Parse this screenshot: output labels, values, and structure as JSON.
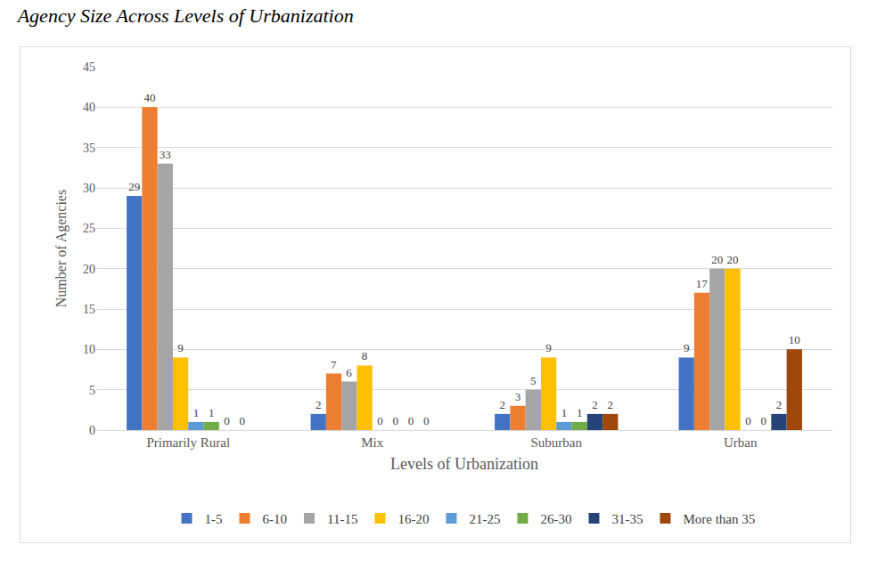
{
  "chart_data": {
    "type": "bar",
    "title": "Agency Size Across Levels of Urbanization",
    "x_label": "Levels of Urbanization",
    "y_label": "Number of Agencies",
    "categories": [
      "Primarily Rural",
      "Mix",
      "Suburban",
      "Urban"
    ],
    "series": [
      {
        "name": "1-5",
        "color": "#4472c4",
        "values": [
          29,
          2,
          2,
          9
        ]
      },
      {
        "name": "6-10",
        "color": "#ed7d31",
        "values": [
          40,
          7,
          3,
          17
        ]
      },
      {
        "name": "11-15",
        "color": "#a5a5a5",
        "values": [
          33,
          6,
          5,
          20
        ]
      },
      {
        "name": "16-20",
        "color": "#ffc000",
        "values": [
          9,
          8,
          9,
          20
        ]
      },
      {
        "name": "21-25",
        "color": "#5b9bd5",
        "values": [
          1,
          0,
          1,
          0
        ]
      },
      {
        "name": "26-30",
        "color": "#70ad47",
        "values": [
          1,
          0,
          1,
          0
        ]
      },
      {
        "name": "31-35",
        "color": "#264478",
        "values": [
          0,
          0,
          2,
          2
        ]
      },
      {
        "name": "More than 35",
        "color": "#9e480e",
        "values": [
          0,
          0,
          2,
          10
        ]
      }
    ],
    "ylim": [
      0,
      45
    ],
    "yticks": [
      0,
      5,
      10,
      15,
      20,
      25,
      30,
      35,
      40,
      45
    ],
    "grid": true,
    "legend": "bottom",
    "data_labels": true
  }
}
